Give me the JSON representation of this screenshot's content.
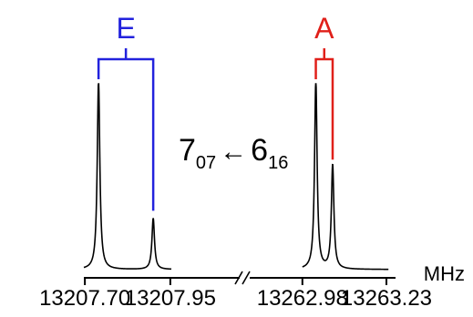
{
  "chart_data": {
    "type": "line",
    "title": "",
    "xlabel": "",
    "ylabel": "",
    "unit": "MHz",
    "transition": {
      "upper_main": "7",
      "upper_sub": "07",
      "arrow": "←",
      "lower_main": "6",
      "lower_sub": "16"
    },
    "axis_break": "//",
    "panels": [
      {
        "name": "left",
        "xlim": [
          13207.665,
          13207.985
        ],
        "ticks": [
          {
            "value": 13207.7,
            "label": "13207.70"
          },
          {
            "value": 13207.95,
            "label": "13207.95"
          }
        ],
        "trace": {
          "baseline": 0.02,
          "width": 0.0045,
          "peaks": [
            {
              "x": 13207.74,
              "h": 1.0
            },
            {
              "x": 13207.9,
              "h": 0.27
            }
          ]
        },
        "bracket": {
          "label": "E",
          "color": "#2222dd",
          "left_x": 13207.74,
          "right_x": 13207.9,
          "right_h": 0.33
        }
      },
      {
        "name": "right",
        "xlim": [
          13262.948,
          13263.268
        ],
        "ticks": [
          {
            "value": 13262.98,
            "label": "13262.98"
          },
          {
            "value": 13263.23,
            "label": "13263.23"
          }
        ],
        "trace": {
          "baseline": 0.02,
          "width": 0.0045,
          "peaks": [
            {
              "x": 13263.02,
              "h": 1.0
            },
            {
              "x": 13263.07,
              "h": 0.55
            }
          ]
        },
        "bracket": {
          "label": "A",
          "color": "#e0201a",
          "left_x": 13263.02,
          "right_x": 13263.07,
          "right_h": 0.6
        }
      }
    ],
    "colors": {
      "trace": "#000000",
      "axis": "#000000"
    }
  }
}
